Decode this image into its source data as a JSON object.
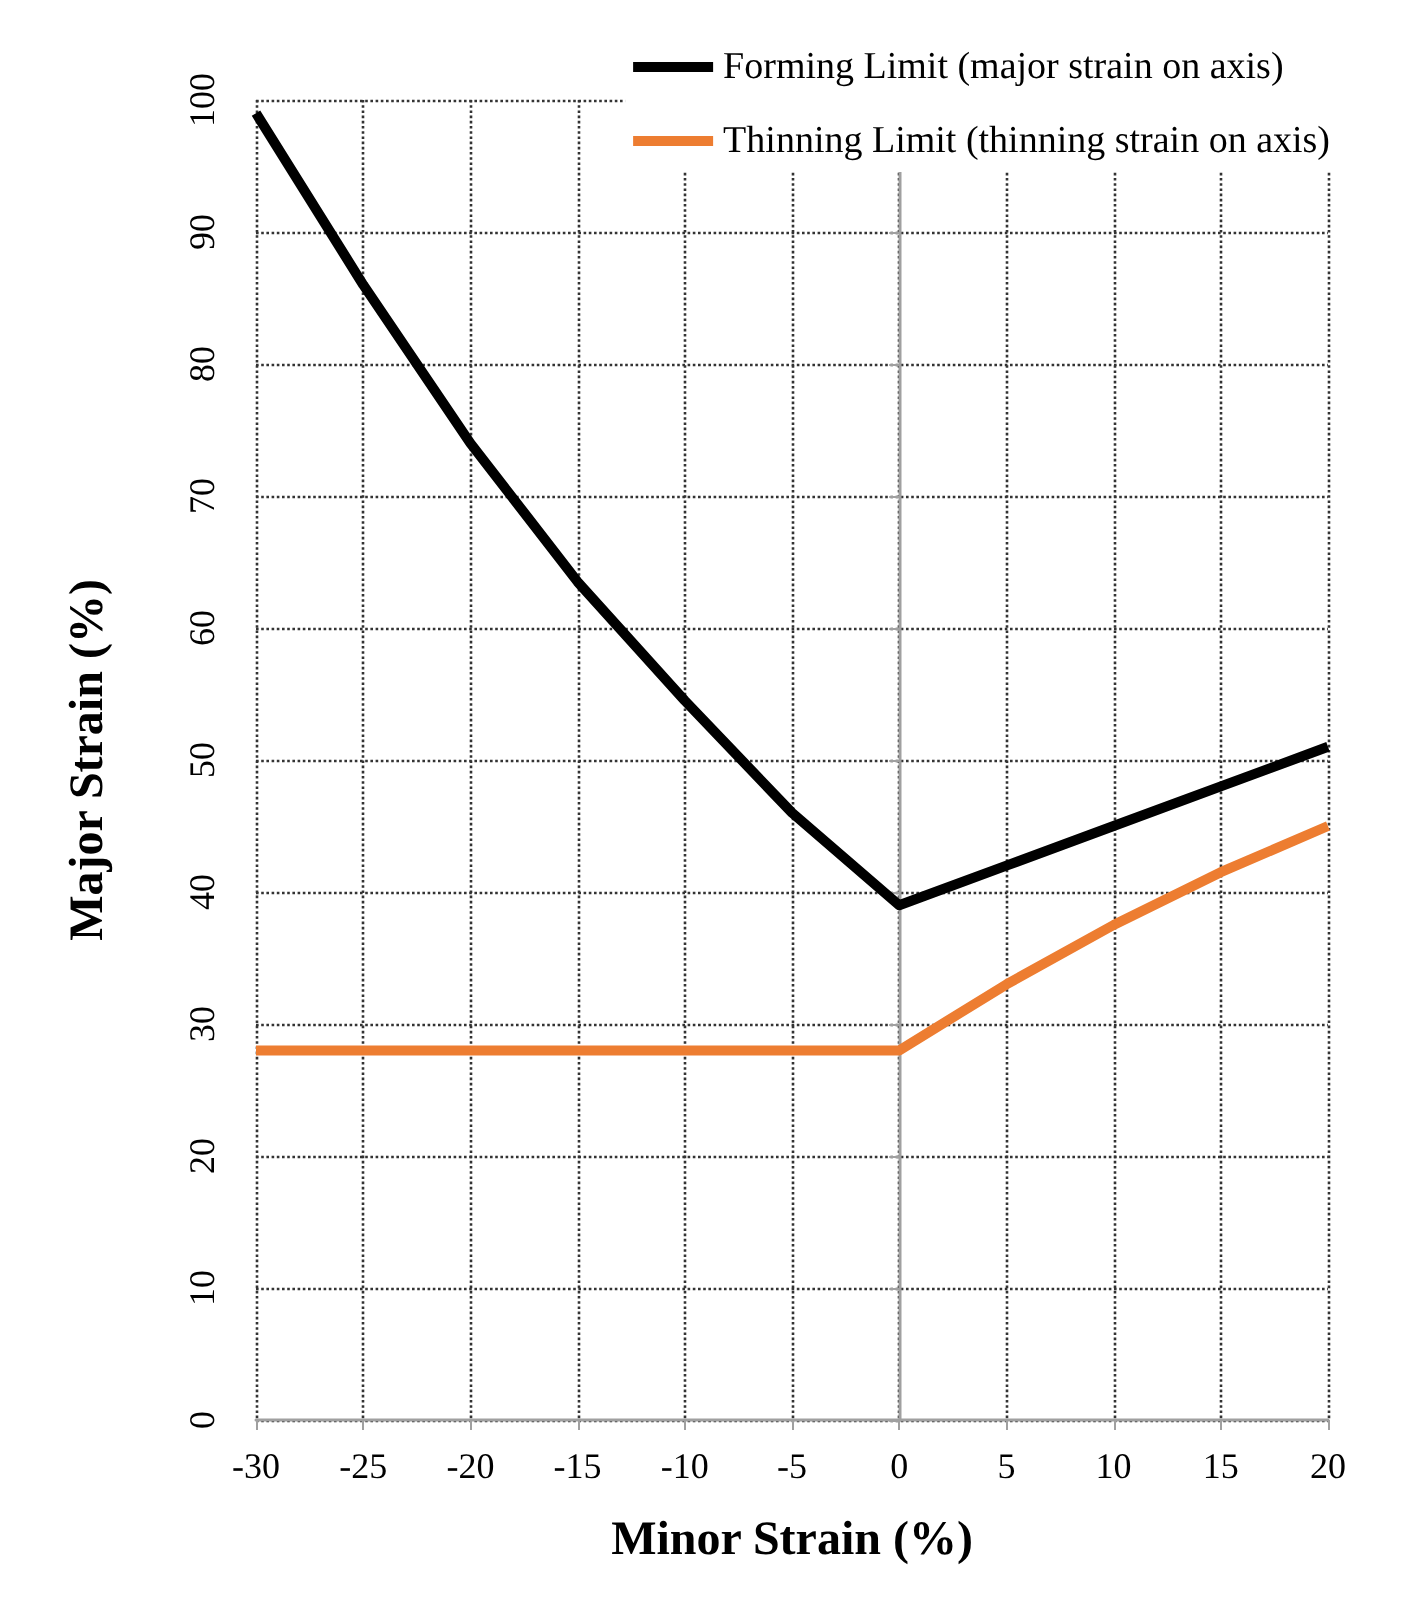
{
  "chart_data": {
    "type": "line",
    "xlabel": "Minor Strain (%)",
    "ylabel": "Major Strain (%)",
    "xlim": [
      -30,
      20
    ],
    "xticks": [
      -30,
      -25,
      -20,
      -15,
      -10,
      -5,
      0,
      5,
      10,
      15,
      20
    ],
    "ylim": [
      0,
      100
    ],
    "yticks": [
      0,
      10,
      20,
      30,
      40,
      50,
      60,
      70,
      80,
      90,
      100
    ],
    "grid": true,
    "legend": "top right",
    "marker": "none",
    "line_style": "solid",
    "series": [
      {
        "name": "Forming Limit (major strain on axis)",
        "color": "#000000",
        "x": [
          -30,
          -25,
          -20,
          -15,
          -10,
          -5,
          0,
          5,
          10,
          15,
          20
        ],
        "values": [
          99,
          86,
          74,
          63.5,
          54.5,
          46,
          39,
          42,
          45,
          48,
          51
        ]
      },
      {
        "name": "Thinning Limit (thinning strain on axis)",
        "color": "#ed7d31",
        "x": [
          -30,
          0,
          5,
          10,
          15,
          20
        ],
        "values": [
          28,
          28,
          33,
          37.5,
          41.5,
          45
        ]
      }
    ]
  }
}
